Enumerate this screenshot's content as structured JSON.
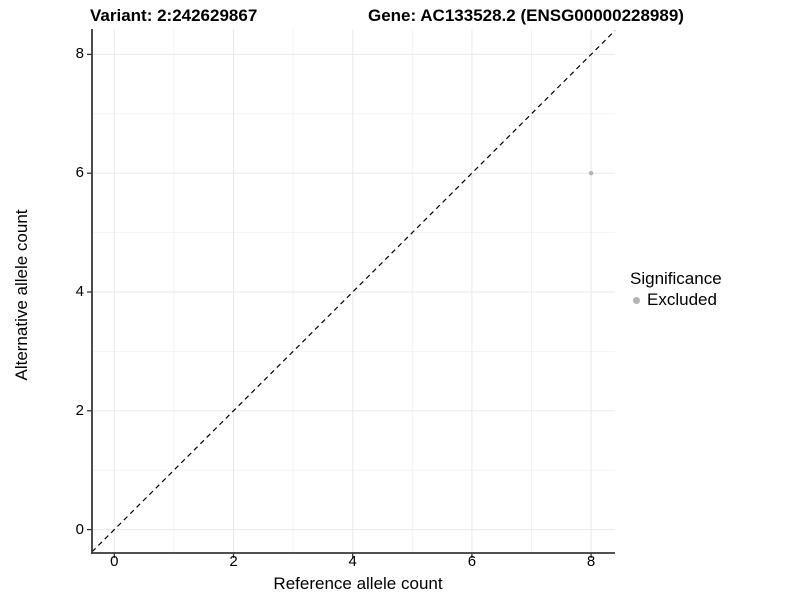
{
  "titles": {
    "variant": "Variant: 2:242629867",
    "gene": "Gene: AC133528.2 (ENSG00000228989)"
  },
  "chart_data": {
    "type": "scatter",
    "title_left": "Variant: 2:242629867",
    "title_right": "Gene: AC133528.2 (ENSG00000228989)",
    "xlabel": "Reference allele count",
    "ylabel": "Alternative allele count",
    "xlim": [
      -0.4,
      8.4
    ],
    "ylim": [
      -0.4,
      8.4
    ],
    "x_ticks": [
      0,
      2,
      4,
      6,
      8
    ],
    "y_ticks": [
      0,
      2,
      4,
      6,
      8
    ],
    "x_minor_ticks": [
      1,
      3,
      5,
      7
    ],
    "y_minor_ticks": [
      1,
      3,
      5,
      7
    ],
    "grid": "major and minor gridlines, light gray on white panel",
    "reference_line": {
      "type": "identity y=x",
      "style": "dashed",
      "color": "#000000"
    },
    "points": [
      {
        "x": 8,
        "y": 6,
        "series": "Excluded"
      }
    ],
    "point_color": "#b3b3b3",
    "legend": {
      "title": "Significance",
      "position": "right",
      "entries": [
        {
          "label": "Excluded",
          "color": "#b3b3b3"
        }
      ]
    },
    "colors": {
      "axis_line": "#383838",
      "grid_major": "#e9e9e9",
      "grid_minor": "#f2f2f2",
      "background": "#ffffff",
      "text": "#000000"
    }
  }
}
